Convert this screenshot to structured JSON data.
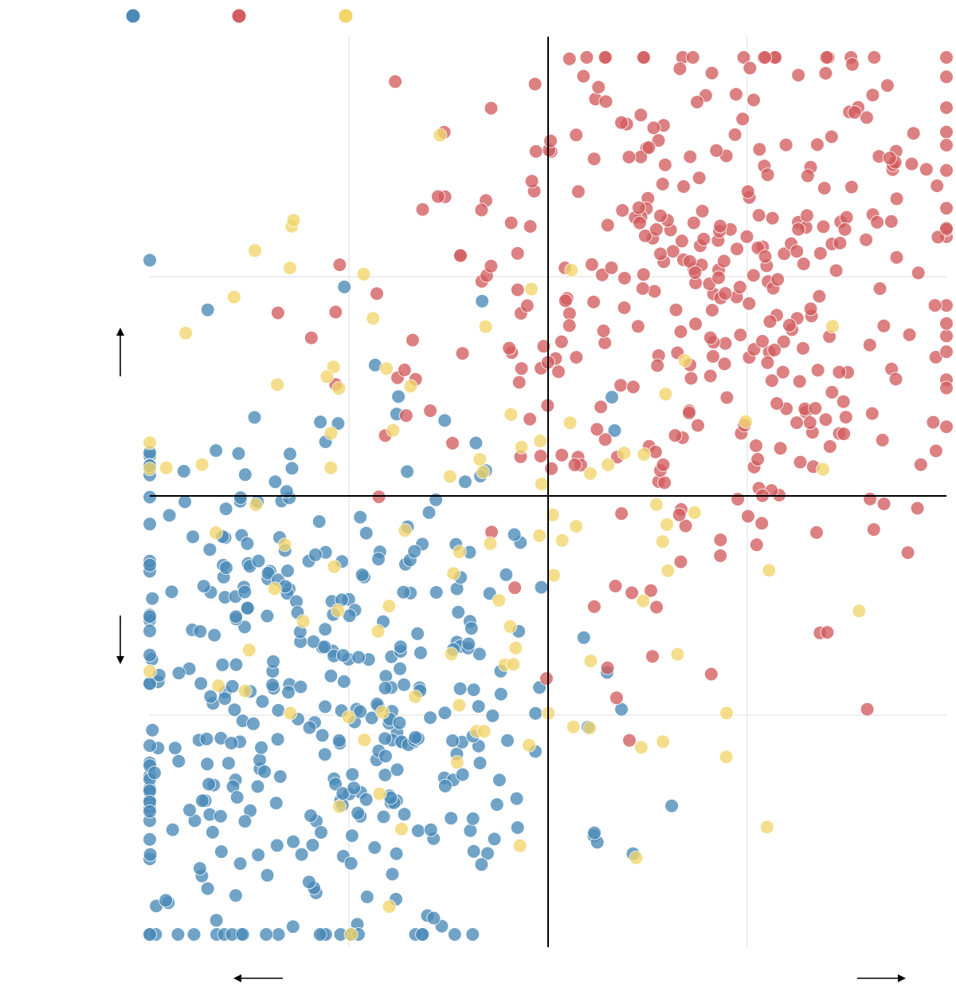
{
  "chart_data": {
    "type": "scatter",
    "title": "",
    "xlabel": "",
    "ylabel": "",
    "xlim": [
      -1,
      1
    ],
    "ylim": [
      -1,
      1
    ],
    "grid": true,
    "zero_axes": true,
    "legend_placement": "top-left",
    "colors": {
      "blue": "#4a8ab8",
      "red": "#d35d5f",
      "yellow": "#f2d56b"
    },
    "series": [
      {
        "color": "#4a8ab8",
        "seed": 11,
        "count": 400,
        "cluster": {
          "cx": -0.58,
          "cy": -0.45,
          "sx": 0.32,
          "sy": 0.34
        }
      },
      {
        "color": "#d35d5f",
        "seed": 23,
        "count": 385,
        "cluster": {
          "cx": 0.38,
          "cy": 0.45,
          "sx": 0.36,
          "sy": 0.34
        }
      },
      {
        "color": "#f2d56b",
        "seed": 37,
        "count": 105,
        "cluster": {
          "cx": -0.18,
          "cy": -0.1,
          "sx": 0.42,
          "sy": 0.38
        }
      }
    ],
    "legend_entries": [
      {
        "color": "#4a8ab8"
      },
      {
        "color": "#d35d5f"
      },
      {
        "color": "#f2d56b"
      }
    ]
  }
}
